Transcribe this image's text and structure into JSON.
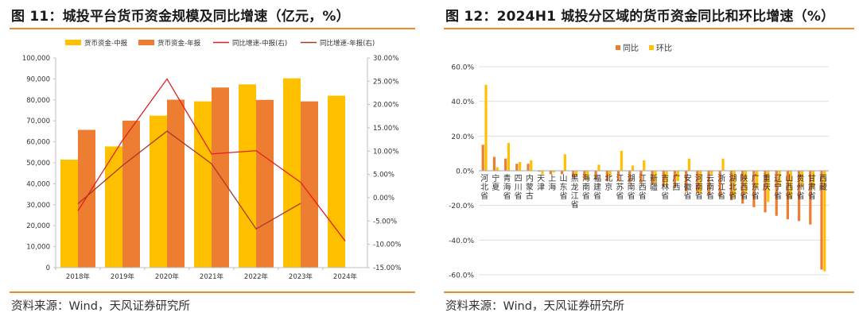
{
  "panels": {
    "left": {
      "title": "图 11：城投平台货币资金规模及同比增速（亿元，%）",
      "source": "资料来源：Wind，天风证券研究所"
    },
    "right": {
      "title": "图 12：2024H1 城投分区域的货币资金同比和环比增速（%）",
      "source": "资料来源：Wind，天风证券研究所"
    }
  },
  "chart_data": [
    {
      "type": "bar",
      "title": "城投平台货币资金规模及同比增速（亿元，%）",
      "categories": [
        "2018年",
        "2019年",
        "2020年",
        "2021年",
        "2022年",
        "2023年",
        "2024年"
      ],
      "series": [
        {
          "name": "货币资金-中报",
          "kind": "bar",
          "axis": "left",
          "color": "#ffc000",
          "values": [
            51500,
            57800,
            72500,
            79300,
            87400,
            90300,
            82000
          ]
        },
        {
          "name": "货币资金-年报",
          "kind": "bar",
          "axis": "left",
          "color": "#ed7d31",
          "values": [
            65700,
            70100,
            80100,
            85900,
            80000,
            79300,
            null
          ]
        },
        {
          "name": "同比增速-中报(右)",
          "kind": "line",
          "axis": "right",
          "color": "#e02020",
          "values": [
            -2.8,
            12.3,
            25.5,
            9.4,
            10.1,
            3.3,
            -9.3
          ]
        },
        {
          "name": "同比增速-年报(右)",
          "kind": "line",
          "axis": "right",
          "color": "#a33a28",
          "values": [
            -1.3,
            6.9,
            14.3,
            7.3,
            -6.7,
            -1.2,
            null
          ]
        }
      ],
      "y_left": {
        "min": 0,
        "max": 100000,
        "step": 10000,
        "ticks": [
          "0",
          "10,000",
          "20,000",
          "30,000",
          "40,000",
          "50,000",
          "60,000",
          "70,000",
          "80,000",
          "90,000",
          "100,000"
        ]
      },
      "y_right": {
        "min": -15,
        "max": 30,
        "step": 5,
        "ticks": [
          "-15.00%",
          "-10.00%",
          "-5.00%",
          "0.00%",
          "5.00%",
          "10.00%",
          "15.00%",
          "20.00%",
          "25.00%",
          "30.00%"
        ]
      },
      "legend_position": "top",
      "grid": false
    },
    {
      "type": "bar",
      "title": "2024H1 城投分区域的货币资金同比和环比增速（%）",
      "categories": [
        "河北省",
        "宁夏",
        "青海省",
        "四川省",
        "内蒙古",
        "天津",
        "上海",
        "山东省",
        "黑龙江省",
        "海南省",
        "福建省",
        "北京",
        "江苏省",
        "湖南省",
        "江西省",
        "新疆",
        "吉林省",
        "广西",
        "安徽省",
        "河南省",
        "云南省",
        "浙江省",
        "湖北省",
        "陕西省",
        "广东省",
        "重庆",
        "辽宁省",
        "山西省",
        "贵州省",
        "甘肃省",
        "西藏"
      ],
      "series": [
        {
          "name": "同比",
          "color": "#ed7d31",
          "values": [
            15,
            8,
            7,
            4,
            4,
            -0.5,
            -2,
            -2,
            -4,
            -5,
            -5,
            -6,
            -6,
            -7,
            -7,
            -8,
            -9,
            -10,
            -12,
            -13,
            -14,
            -15,
            -17,
            -19,
            -21,
            -24,
            -26,
            -28,
            -29,
            -31,
            -57
          ]
        },
        {
          "name": "环比",
          "color": "#ffc000",
          "values": [
            49.5,
            2,
            16,
            5,
            6,
            -2,
            -1,
            9.5,
            -3,
            -5,
            3.5,
            -3,
            11.5,
            3,
            6,
            -7,
            -8,
            -6,
            7,
            -13,
            -2,
            7,
            -15,
            -13,
            -10,
            -18,
            -9,
            -16,
            -9,
            -10,
            -58
          ]
        }
      ],
      "y": {
        "min": -60,
        "max": 60,
        "step": 20,
        "ticks": [
          "-60.0%",
          "-40.0%",
          "-20.0%",
          "0.0%",
          "20.0%",
          "40.0%",
          "60.0%"
        ]
      },
      "legend_position": "top",
      "grid": true
    }
  ]
}
